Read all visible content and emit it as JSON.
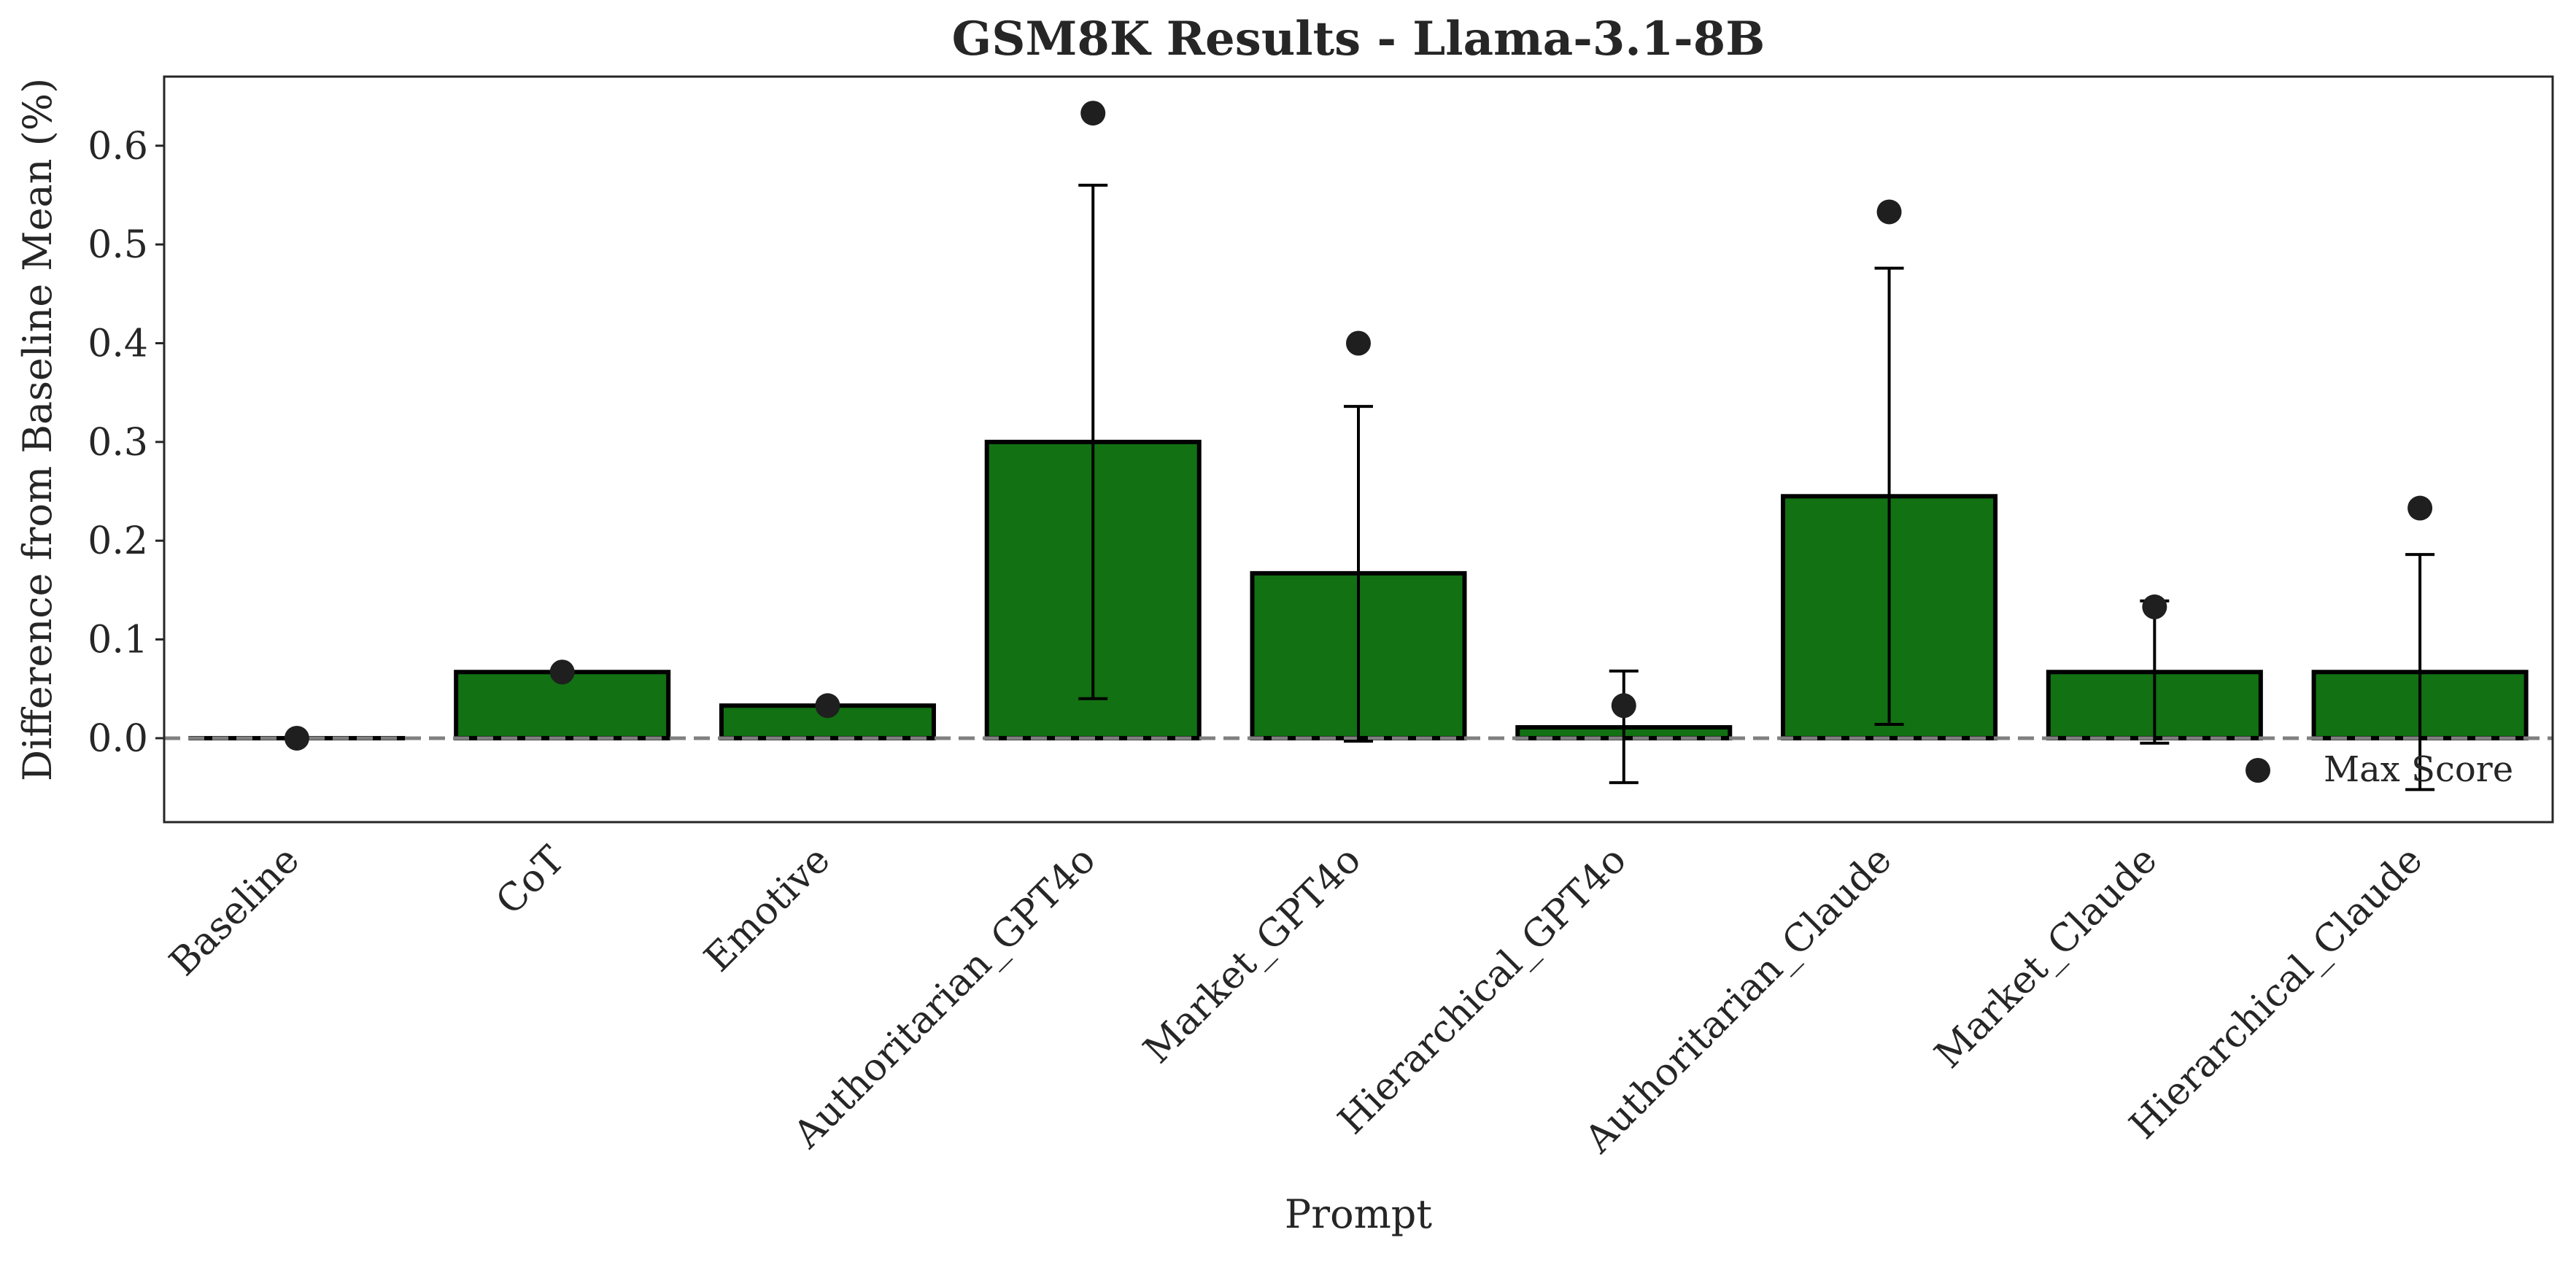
{
  "chart_data": {
    "type": "bar",
    "title": "GSM8K Results - Llama-3.1-8B",
    "xlabel": "Prompt",
    "ylabel": "Difference from Baseline Mean (%)",
    "ylim": [
      -0.085,
      0.67
    ],
    "yticks": [
      0.0,
      0.1,
      0.2,
      0.3,
      0.4,
      0.5,
      0.6
    ],
    "ytick_labels": [
      "0.0",
      "0.1",
      "0.2",
      "0.3",
      "0.4",
      "0.5",
      "0.6"
    ],
    "grid": false,
    "legend_position": "lower-right",
    "categories": [
      "Baseline",
      "CoT",
      "Emotive",
      "Authoritarian_GPT4o",
      "Market_GPT4o",
      "Hierarchical_GPT4o",
      "Authoritarian_Claude",
      "Market_Claude",
      "Hierarchical_Claude"
    ],
    "values": [
      0.0,
      0.067,
      0.033,
      0.3,
      0.167,
      0.011,
      0.245,
      0.067,
      0.067
    ],
    "error_low": [
      0.0,
      0.067,
      0.033,
      0.04,
      -0.003,
      -0.045,
      0.014,
      -0.005,
      -0.052
    ],
    "error_high": [
      0.0,
      0.067,
      0.033,
      0.56,
      0.336,
      0.068,
      0.476,
      0.139,
      0.186
    ],
    "max_scores": [
      0.0,
      0.067,
      0.033,
      0.633,
      0.4,
      0.033,
      0.533,
      0.133,
      0.233
    ],
    "reference_line": 0.0,
    "legend": [
      "Max Score"
    ],
    "colors": {
      "bar_fill": "#127112",
      "bar_edge": "#000000",
      "marker": "#1f1f1f",
      "error_bar": "#000000",
      "reference_line": "#808080",
      "text": "#262626",
      "frame": "#262626"
    }
  }
}
